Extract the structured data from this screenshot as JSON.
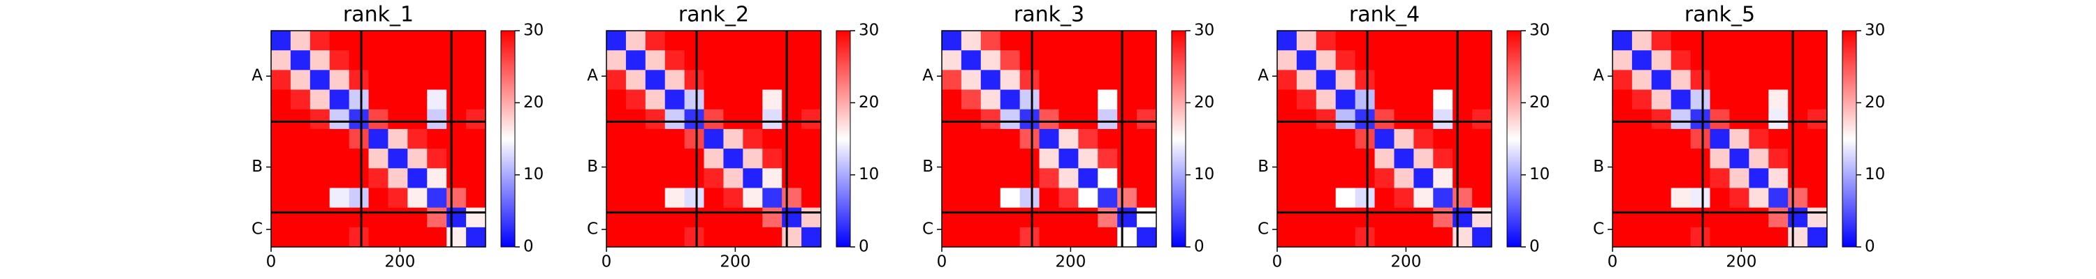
{
  "chart_data": [
    {
      "type": "heatmap",
      "title": "rank_1",
      "colormap": "bwr",
      "xlim": [
        0,
        333
      ],
      "ylim": [
        333,
        0
      ],
      "xticks": [
        0,
        200
      ],
      "yticks": [
        {
          "value": 70,
          "label": "A"
        },
        {
          "value": 210,
          "label": "B"
        },
        {
          "value": 306,
          "label": "C"
        }
      ],
      "boundaries": [
        140,
        280
      ],
      "colorbar": {
        "lim": [
          0,
          30
        ],
        "ticks": [
          0,
          10,
          20,
          30
        ]
      },
      "matrix": [
        [
          2,
          18,
          28,
          30,
          30,
          30,
          30,
          30,
          30,
          30,
          30
        ],
        [
          18,
          2,
          18,
          28,
          30,
          30,
          30,
          30,
          30,
          30,
          30
        ],
        [
          28,
          18,
          2,
          18,
          28,
          30,
          30,
          30,
          30,
          30,
          30
        ],
        [
          30,
          28,
          18,
          2,
          12,
          30,
          30,
          30,
          14,
          30,
          30
        ],
        [
          30,
          30,
          28,
          12,
          3,
          26,
          30,
          30,
          12,
          30,
          28
        ],
        [
          30,
          30,
          30,
          30,
          26,
          2,
          18,
          28,
          30,
          30,
          30
        ],
        [
          30,
          30,
          30,
          30,
          30,
          18,
          2,
          18,
          28,
          30,
          30
        ],
        [
          30,
          30,
          30,
          30,
          30,
          28,
          18,
          2,
          16,
          30,
          30
        ],
        [
          30,
          30,
          30,
          14,
          12,
          30,
          28,
          16,
          3,
          24,
          30
        ],
        [
          30,
          30,
          30,
          30,
          30,
          30,
          30,
          30,
          24,
          2,
          16
        ],
        [
          30,
          30,
          30,
          30,
          28,
          30,
          30,
          30,
          30,
          16,
          2
        ]
      ]
    },
    {
      "type": "heatmap",
      "title": "rank_2",
      "colormap": "bwr",
      "xlim": [
        0,
        333
      ],
      "ylim": [
        333,
        0
      ],
      "xticks": [
        0,
        200
      ],
      "yticks": [
        {
          "value": 70,
          "label": "A"
        },
        {
          "value": 210,
          "label": "B"
        },
        {
          "value": 306,
          "label": "C"
        }
      ],
      "boundaries": [
        140,
        280
      ],
      "colorbar": {
        "lim": [
          0,
          30
        ],
        "ticks": [
          0,
          10,
          20,
          30
        ]
      },
      "matrix": [
        [
          2,
          18,
          28,
          30,
          30,
          30,
          30,
          30,
          30,
          30,
          30
        ],
        [
          18,
          2,
          18,
          28,
          30,
          30,
          30,
          30,
          30,
          30,
          30
        ],
        [
          28,
          18,
          2,
          18,
          28,
          30,
          30,
          30,
          30,
          30,
          30
        ],
        [
          30,
          28,
          18,
          2,
          12,
          30,
          30,
          30,
          16,
          30,
          30
        ],
        [
          30,
          30,
          28,
          12,
          3,
          26,
          30,
          30,
          13,
          30,
          28
        ],
        [
          30,
          30,
          30,
          30,
          26,
          2,
          18,
          28,
          30,
          30,
          30
        ],
        [
          30,
          30,
          30,
          30,
          30,
          18,
          2,
          18,
          28,
          30,
          30
        ],
        [
          30,
          30,
          30,
          30,
          30,
          28,
          18,
          2,
          16,
          30,
          30
        ],
        [
          30,
          30,
          30,
          16,
          13,
          30,
          28,
          16,
          3,
          24,
          30
        ],
        [
          30,
          30,
          30,
          30,
          30,
          30,
          30,
          30,
          24,
          2,
          18
        ],
        [
          30,
          30,
          30,
          30,
          28,
          30,
          30,
          30,
          30,
          18,
          2
        ]
      ]
    },
    {
      "type": "heatmap",
      "title": "rank_3",
      "colormap": "bwr",
      "xlim": [
        0,
        333
      ],
      "ylim": [
        333,
        0
      ],
      "xticks": [
        0,
        200
      ],
      "yticks": [
        {
          "value": 70,
          "label": "A"
        },
        {
          "value": 210,
          "label": "B"
        },
        {
          "value": 306,
          "label": "C"
        }
      ],
      "boundaries": [
        140,
        280
      ],
      "colorbar": {
        "lim": [
          0,
          30
        ],
        "ticks": [
          0,
          10,
          20,
          30
        ]
      },
      "matrix": [
        [
          2,
          17,
          26,
          30,
          30,
          30,
          30,
          30,
          30,
          30,
          30
        ],
        [
          17,
          2,
          17,
          26,
          30,
          30,
          30,
          30,
          30,
          30,
          30
        ],
        [
          26,
          17,
          2,
          17,
          27,
          30,
          30,
          30,
          30,
          30,
          30
        ],
        [
          30,
          26,
          17,
          2,
          12,
          30,
          30,
          30,
          15,
          30,
          30
        ],
        [
          30,
          30,
          27,
          12,
          3,
          25,
          30,
          30,
          12,
          30,
          27
        ],
        [
          30,
          30,
          30,
          30,
          25,
          2,
          17,
          27,
          30,
          30,
          30
        ],
        [
          30,
          30,
          30,
          30,
          30,
          17,
          2,
          17,
          27,
          30,
          30
        ],
        [
          30,
          30,
          30,
          30,
          30,
          27,
          17,
          2,
          15,
          30,
          30
        ],
        [
          30,
          30,
          30,
          15,
          12,
          30,
          27,
          15,
          3,
          23,
          30
        ],
        [
          30,
          30,
          30,
          30,
          30,
          30,
          30,
          30,
          23,
          2,
          15
        ],
        [
          30,
          30,
          30,
          30,
          27,
          30,
          30,
          30,
          30,
          15,
          2
        ]
      ]
    },
    {
      "type": "heatmap",
      "title": "rank_4",
      "colormap": "bwr",
      "xlim": [
        0,
        333
      ],
      "ylim": [
        333,
        0
      ],
      "xticks": [
        0,
        200
      ],
      "yticks": [
        {
          "value": 70,
          "label": "A"
        },
        {
          "value": 210,
          "label": "B"
        },
        {
          "value": 306,
          "label": "C"
        }
      ],
      "boundaries": [
        140,
        280
      ],
      "colorbar": {
        "lim": [
          0,
          30
        ],
        "ticks": [
          0,
          10,
          20,
          30
        ]
      },
      "matrix": [
        [
          2,
          18,
          28,
          30,
          30,
          30,
          30,
          30,
          30,
          30,
          30
        ],
        [
          18,
          2,
          18,
          28,
          30,
          30,
          30,
          30,
          30,
          30,
          30
        ],
        [
          28,
          18,
          2,
          18,
          28,
          30,
          30,
          30,
          30,
          30,
          30
        ],
        [
          30,
          28,
          18,
          2,
          11,
          30,
          30,
          30,
          15,
          30,
          30
        ],
        [
          30,
          30,
          28,
          11,
          3,
          26,
          30,
          30,
          13,
          30,
          28
        ],
        [
          30,
          30,
          30,
          30,
          26,
          2,
          18,
          28,
          30,
          30,
          30
        ],
        [
          30,
          30,
          30,
          30,
          30,
          18,
          2,
          18,
          28,
          30,
          30
        ],
        [
          30,
          30,
          30,
          30,
          30,
          28,
          18,
          2,
          16,
          30,
          30
        ],
        [
          30,
          30,
          30,
          15,
          13,
          30,
          28,
          16,
          3,
          24,
          30
        ],
        [
          30,
          30,
          30,
          30,
          30,
          30,
          30,
          30,
          24,
          2,
          17
        ],
        [
          30,
          30,
          30,
          30,
          28,
          30,
          30,
          30,
          30,
          17,
          2
        ]
      ]
    },
    {
      "type": "heatmap",
      "title": "rank_5",
      "colormap": "bwr",
      "xlim": [
        0,
        333
      ],
      "ylim": [
        333,
        0
      ],
      "xticks": [
        0,
        200
      ],
      "yticks": [
        {
          "value": 70,
          "label": "A"
        },
        {
          "value": 210,
          "label": "B"
        },
        {
          "value": 306,
          "label": "C"
        }
      ],
      "boundaries": [
        140,
        280
      ],
      "colorbar": {
        "lim": [
          0,
          30
        ],
        "ticks": [
          0,
          10,
          20,
          30
        ]
      },
      "matrix": [
        [
          2,
          18,
          28,
          30,
          30,
          30,
          30,
          30,
          30,
          30,
          30
        ],
        [
          18,
          2,
          18,
          28,
          30,
          30,
          30,
          30,
          30,
          30,
          30
        ],
        [
          28,
          18,
          2,
          18,
          28,
          30,
          30,
          30,
          30,
          30,
          30
        ],
        [
          30,
          28,
          18,
          2,
          12,
          30,
          30,
          30,
          16,
          30,
          30
        ],
        [
          30,
          30,
          28,
          12,
          3,
          26,
          30,
          30,
          14,
          30,
          28
        ],
        [
          30,
          30,
          30,
          30,
          26,
          2,
          18,
          28,
          30,
          30,
          30
        ],
        [
          30,
          30,
          30,
          30,
          30,
          18,
          2,
          18,
          28,
          30,
          30
        ],
        [
          30,
          30,
          30,
          30,
          30,
          28,
          18,
          2,
          17,
          30,
          30
        ],
        [
          30,
          30,
          30,
          16,
          14,
          30,
          28,
          17,
          3,
          24,
          30
        ],
        [
          30,
          30,
          30,
          30,
          30,
          30,
          30,
          30,
          24,
          2,
          17
        ],
        [
          30,
          30,
          30,
          30,
          28,
          30,
          30,
          30,
          30,
          17,
          2
        ]
      ]
    }
  ]
}
